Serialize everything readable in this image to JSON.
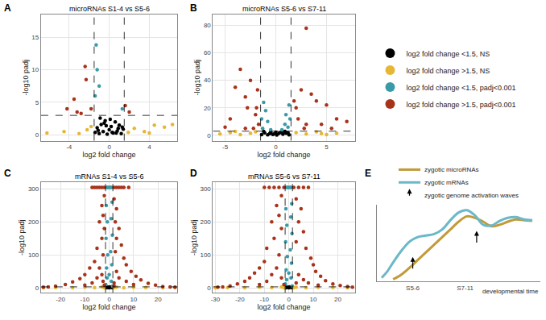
{
  "chart_data": [
    {
      "label": "A",
      "type": "scatter",
      "title": "microRNAs S1-4 vs S5-6",
      "xlabel": "log2 fold change",
      "ylabel": "-log10 padj",
      "xlim": [
        -6.8,
        6.8
      ],
      "ylim": [
        -0.9,
        18.5
      ],
      "xticks": [
        -4,
        0,
        4
      ],
      "yticks": [
        0,
        5,
        10,
        15
      ],
      "grid": true,
      "legend": "right",
      "marker": "circle",
      "thresholds": {
        "x": [
          -1.5,
          1.5
        ],
        "y": 3
      },
      "series": [
        {
          "name": "log2 fold change <1.5, NS",
          "color": "#000000",
          "x": [
            -1.4,
            -1.2,
            -1.0,
            -0.8,
            -0.6,
            -0.4,
            -0.2,
            0.0,
            0.2,
            0.4,
            0.6,
            0.8,
            1.0,
            1.2,
            1.4,
            -0.9,
            -0.3,
            0.3,
            0.9,
            -1.1,
            0.1,
            0.7,
            -0.5,
            1.3
          ],
          "y": [
            0.4,
            1.1,
            0.2,
            1.6,
            0.5,
            2.2,
            0.1,
            0.8,
            1.3,
            0.3,
            2.0,
            0.6,
            1.5,
            0.2,
            0.9,
            2.6,
            1.4,
            0.4,
            1.0,
            0.7,
            2.4,
            0.3,
            1.8,
            1.2
          ]
        },
        {
          "name": "log2 fold change >1.5, NS",
          "color": "#E6B735",
          "x": [
            -6.2,
            -4.5,
            -3.0,
            -2.2,
            -1.8,
            1.9,
            2.5,
            3.5,
            4.0,
            4.5,
            5.5,
            6.3
          ],
          "y": [
            0.3,
            0.5,
            0.2,
            0.8,
            1.3,
            0.4,
            1.0,
            0.5,
            0.3,
            1.5,
            1.2,
            1.6
          ]
        },
        {
          "name": "log2 fold change <1.5, padj<0.001",
          "color": "#3A9BA8",
          "x": [
            -1.3,
            -1.2,
            -1.0,
            -1.4,
            1.3
          ],
          "y": [
            13.8,
            10.0,
            7.5,
            6.0,
            4.0
          ]
        },
        {
          "name": "log2 fold change >1.5, padj<0.001",
          "color": "#A8321A",
          "x": [
            -2.4,
            -2.3,
            -3.5,
            -4.2,
            -3.2,
            -2.8,
            1.6,
            2.0,
            -1.8
          ],
          "y": [
            10.5,
            8.5,
            5.5,
            4.0,
            3.5,
            3.3,
            4.5,
            3.5,
            4.0
          ]
        }
      ]
    },
    {
      "label": "B",
      "type": "scatter",
      "title": "microRNAs S5-6 vs S7-11",
      "xlabel": "log2 fold change",
      "ylabel": "-log10 padj",
      "xlim": [
        -6.2,
        7.8
      ],
      "ylim": [
        -4,
        88
      ],
      "xticks": [
        -5,
        0,
        5
      ],
      "yticks": [
        0,
        20,
        40,
        60,
        80
      ],
      "grid": true,
      "marker": "circle",
      "thresholds": {
        "x": [
          -1.5,
          1.5
        ],
        "y": 3
      },
      "series": [
        {
          "name": "log2 fold change <1.5, NS",
          "color": "#000000",
          "x": [
            -1.4,
            -1.1,
            -0.8,
            -0.5,
            -0.2,
            0.1,
            0.4,
            0.7,
            1.0,
            1.3,
            -1.2,
            -0.6,
            0.0,
            0.6,
            1.2,
            -0.3,
            0.3,
            0.9
          ],
          "y": [
            0.5,
            1.8,
            0.3,
            2.5,
            1.0,
            0.2,
            2.0,
            0.8,
            1.5,
            0.4,
            2.8,
            1.2,
            2.2,
            2.6,
            1.9,
            0.6,
            1.4,
            2.9
          ]
        },
        {
          "name": "log2 fold change >1.5, NS",
          "color": "#E6B735",
          "x": [
            -5.5,
            -4.5,
            -4.0,
            -3.5,
            -2.5,
            -2.0,
            2.0,
            3.0,
            4.0,
            4.5,
            5.0,
            6.0
          ],
          "y": [
            1.0,
            2.0,
            2.8,
            0.5,
            1.5,
            2.5,
            2.0,
            1.0,
            2.5,
            1.2,
            0.5,
            1.5
          ]
        },
        {
          "name": "log2 fold change <1.5, padj<0.001",
          "color": "#3A9BA8",
          "x": [
            -1.2,
            -1.0,
            -0.8,
            1.0,
            1.3,
            0.9,
            1.2,
            -1.3,
            -0.5,
            0.6,
            1.4,
            -1.4
          ],
          "y": [
            24,
            18,
            10,
            15,
            22,
            8,
            6,
            5,
            4,
            4,
            12,
            12
          ]
        },
        {
          "name": "log2 fold change >1.5, padj<0.001",
          "color": "#A8321A",
          "x": [
            3.0,
            -3.5,
            -2.5,
            -4.0,
            -3.0,
            -1.8,
            2.5,
            3.5,
            4.0,
            5.0,
            7.0,
            6.0,
            -2.8,
            2.0,
            -2.0,
            -4.5,
            -5.0,
            1.8,
            2.2,
            3.0,
            4.5,
            -1.7,
            -3.0,
            2.8,
            5.5,
            -2.2,
            -1.9
          ],
          "y": [
            78,
            48,
            40,
            35,
            28,
            33,
            33,
            30,
            25,
            22,
            10,
            12,
            20,
            20,
            15,
            12,
            6,
            25,
            12,
            8,
            8,
            8,
            5,
            5,
            5,
            5,
            20
          ]
        }
      ]
    },
    {
      "label": "C",
      "type": "scatter",
      "title": "mRNAs S1-4 vs S5-6",
      "xlabel": "log2 fold change",
      "ylabel": "-log10 padj",
      "xlim": [
        -28,
        28
      ],
      "ylim": [
        -15,
        320
      ],
      "xticks": [
        -20,
        -10,
        0,
        10,
        20
      ],
      "yticks": [
        0,
        100,
        200,
        300
      ],
      "grid": true,
      "marker": "circle",
      "thresholds": {
        "x": [
          -1.5,
          1.5
        ],
        "y": 3
      },
      "series": [
        {
          "name": "log2 fold change <1.5, NS",
          "color": "#000000",
          "x": [
            -1.0,
            -0.5,
            0.0,
            0.5,
            1.0,
            -1.4,
            1.3,
            0.2
          ],
          "y": [
            1.0,
            2.0,
            0.5,
            1.5,
            2.5,
            0.3,
            0.8,
            2.8
          ]
        },
        {
          "name": "log2 fold change >1.5, NS",
          "color": "#E6B735",
          "x": [
            -27,
            -22,
            -15,
            -10,
            -6,
            -3,
            -2,
            2,
            3,
            6,
            10,
            15,
            22,
            27
          ],
          "y": [
            0.5,
            1.0,
            0.5,
            2.0,
            1.0,
            2.5,
            0.5,
            1.0,
            2.0,
            0.5,
            1.5,
            1.0,
            0.5,
            1.0
          ]
        },
        {
          "name": "log2 fold change <1.5, padj<0.001",
          "color": "#3A9BA8",
          "x": [
            -1.0,
            -0.5,
            0.0,
            0.5,
            1.0,
            -1.2,
            1.2,
            -0.8,
            0.8,
            -1.3,
            1.3,
            -0.6,
            0.6,
            -1.1,
            1.1,
            -0.9,
            0.9,
            -1.4,
            1.4,
            0.0
          ],
          "y": [
            305,
            305,
            305,
            305,
            305,
            250,
            260,
            200,
            210,
            150,
            160,
            100,
            110,
            60,
            70,
            30,
            20,
            10,
            5,
            40
          ]
        },
        {
          "name": "log2 fold change >1.5, padj<0.001",
          "color": "#A8321A",
          "x": [
            -7,
            -6,
            -5,
            -4,
            -3,
            -2,
            2,
            3,
            4,
            5,
            6,
            8,
            -2,
            -3,
            -2.5,
            -4,
            -2,
            -3,
            -5,
            -2.5,
            -6,
            2,
            3,
            2.5,
            4,
            3,
            5,
            2.5,
            6,
            7,
            -8,
            -10,
            -12,
            -15,
            -18,
            -22,
            -25,
            -27,
            9,
            11,
            13,
            16,
            19,
            22,
            25,
            27,
            -4,
            -3,
            -2.5,
            -5,
            3,
            4,
            2,
            -7,
            7,
            -10,
            10,
            -2,
            2
          ],
          "y": [
            305,
            305,
            305,
            305,
            305,
            305,
            305,
            305,
            305,
            305,
            305,
            305,
            280,
            250,
            220,
            200,
            180,
            150,
            120,
            100,
            80,
            270,
            240,
            200,
            180,
            150,
            130,
            110,
            90,
            70,
            60,
            40,
            28,
            18,
            10,
            5,
            3,
            2,
            50,
            35,
            24,
            14,
            8,
            4,
            3,
            2,
            60,
            40,
            20,
            30,
            50,
            30,
            15,
            15,
            20,
            8,
            10,
            8,
            6
          ]
        }
      ]
    },
    {
      "label": "D",
      "type": "scatter",
      "title": "mRNAs S5-6 vs S7-11",
      "xlabel": "log2 fold change",
      "ylabel": "-log10 padj",
      "xlim": [
        -31,
        27
      ],
      "ylim": [
        -15,
        320
      ],
      "xticks": [
        -30,
        -20,
        -10,
        0,
        10,
        20
      ],
      "yticks": [
        0,
        100,
        200,
        300
      ],
      "grid": true,
      "marker": "circle",
      "thresholds": {
        "x": [
          -1.5,
          1.5
        ],
        "y": 3
      },
      "series": [
        {
          "name": "log2 fold change <1.5, NS",
          "color": "#000000",
          "x": [
            -1.2,
            -0.6,
            0.0,
            0.6,
            1.2,
            -1.4,
            1.4,
            0.3
          ],
          "y": [
            1.2,
            2.2,
            0.4,
            1.6,
            2.4,
            0.3,
            0.7,
            2.9
          ]
        },
        {
          "name": "log2 fold change >1.5, NS",
          "color": "#E6B735",
          "x": [
            -30,
            -25,
            -18,
            -12,
            -7,
            -3,
            -2,
            2,
            3,
            7,
            12,
            18,
            24
          ],
          "y": [
            0.5,
            1.0,
            0.5,
            2.0,
            1.0,
            2.5,
            0.5,
            1.0,
            2.0,
            0.5,
            1.5,
            1.0,
            0.5
          ]
        },
        {
          "name": "log2 fold change <1.5, padj<0.001",
          "color": "#3A9BA8",
          "x": [
            -1.0,
            -0.5,
            0.0,
            0.5,
            1.0,
            -1.2,
            1.2,
            -0.8,
            0.8,
            -1.3,
            1.3,
            -0.6,
            0.6,
            -1.1,
            1.1,
            -0.9,
            0.9,
            -1.4,
            1.4,
            0.0
          ],
          "y": [
            305,
            305,
            305,
            305,
            305,
            240,
            255,
            190,
            215,
            140,
            165,
            95,
            115,
            55,
            75,
            25,
            30,
            12,
            6,
            45
          ]
        },
        {
          "name": "log2 fold change >1.5, padj<0.001",
          "color": "#A8321A",
          "x": [
            -10,
            -8,
            -6,
            -4,
            -2,
            2,
            4,
            6,
            8,
            -3,
            -5,
            -4,
            -7,
            -3,
            -6,
            -9,
            -4,
            -10,
            -12,
            3,
            5,
            4,
            6,
            3,
            7,
            9,
            10,
            11,
            -14,
            -16,
            -18,
            -21,
            -24,
            -27,
            -29,
            13,
            15,
            18,
            21,
            24,
            26,
            -5,
            -3,
            -2,
            -7,
            4,
            3,
            6,
            -9,
            8,
            -12,
            12
          ],
          "y": [
            305,
            305,
            305,
            305,
            305,
            305,
            305,
            305,
            305,
            280,
            250,
            220,
            200,
            180,
            150,
            120,
            100,
            80,
            60,
            270,
            240,
            200,
            170,
            140,
            120,
            90,
            70,
            50,
            45,
            30,
            20,
            12,
            6,
            3,
            2,
            35,
            22,
            12,
            7,
            4,
            2,
            60,
            30,
            10,
            40,
            40,
            15,
            25,
            20,
            15,
            10,
            8
          ]
        }
      ]
    },
    {
      "label": "E",
      "type": "line",
      "xlabel": "developmental time",
      "xlim": [
        0,
        10
      ],
      "ylim": [
        0,
        10
      ],
      "xticks": [
        {
          "value": 2.2,
          "label": "S5-6"
        },
        {
          "value": 5.4,
          "label": "S7-11"
        }
      ],
      "tick_labels": "x",
      "x": [
        0.3,
        0.6,
        1,
        1.5,
        2,
        2.5,
        3,
        3.5,
        4,
        4.5,
        5,
        5.5,
        6,
        6.5,
        7,
        7.5,
        8,
        8.5,
        9,
        9.5
      ],
      "series": [
        {
          "name": "zygotic microRNAs",
          "color": "#C29A3A",
          "values": [
            null,
            null,
            0.3,
            0.9,
            1.8,
            2.8,
            3.8,
            4.8,
            5.8,
            6.8,
            7.8,
            8.5,
            8.3,
            7.8,
            7.2,
            7.4,
            7.8,
            8.1,
            8.0,
            7.9
          ]
        },
        {
          "name": "zygotic mRNAs",
          "color": "#6BB8C8",
          "values": [
            0.5,
            1.2,
            2.5,
            4.0,
            5.2,
            5.8,
            6.0,
            6.2,
            6.8,
            8.0,
            9.0,
            9.3,
            8.6,
            7.4,
            7.3,
            7.9,
            8.3,
            8.4,
            8.1,
            8.0
          ]
        }
      ],
      "annotations": [
        {
          "text": "zygotic genome activation waves",
          "arrows": [
            {
              "x": 2.2,
              "y": 3.2
            },
            {
              "x": 6.1,
              "y": 6.6
            }
          ]
        }
      ]
    }
  ]
}
